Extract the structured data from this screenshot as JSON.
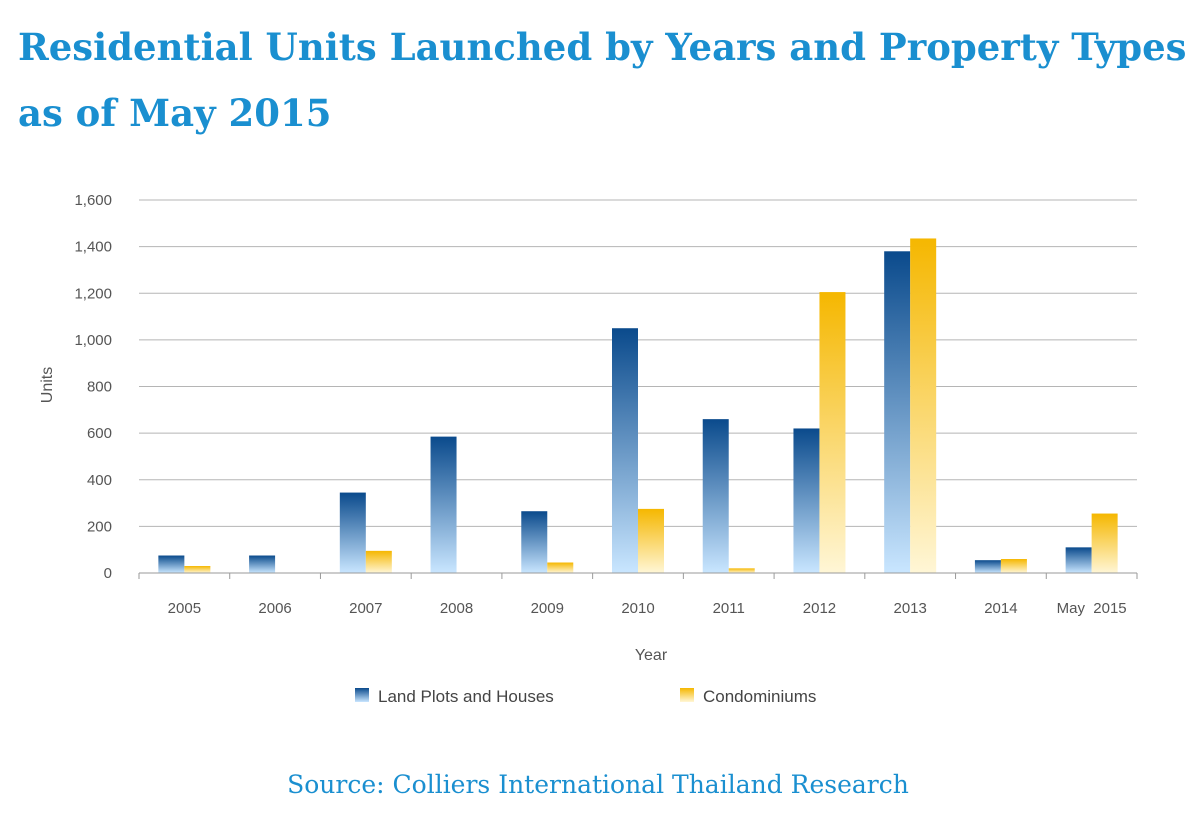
{
  "title": "Residential Units Launched by Years and Property Types as of May 2015",
  "source": "Source: Colliers International Thailand Research",
  "colors": {
    "land_top": "#0a4a8c",
    "land_bottom": "#c9e6ff",
    "condo_top": "#f5b700",
    "condo_bottom": "#fff6d6",
    "title": "#1a8fd0"
  },
  "chart_data": {
    "type": "bar",
    "xlabel": "Year",
    "ylabel": "Units",
    "ylim": [
      0,
      1600
    ],
    "yticks": [
      0,
      200,
      400,
      600,
      800,
      1000,
      1200,
      1400,
      1600
    ],
    "ytick_labels": [
      "0",
      "200",
      "400",
      "600",
      "800",
      "1,000",
      "1,200",
      "1,400",
      "1,600"
    ],
    "grid": true,
    "legend": "bottom",
    "categories": [
      "2005",
      "2006",
      "2007",
      "2008",
      "2009",
      "2010",
      "2011",
      "2012",
      "2013",
      "2014",
      "May  2015"
    ],
    "series": [
      {
        "name": "Land Plots and Houses",
        "values": [
          75,
          75,
          345,
          585,
          265,
          1050,
          660,
          620,
          1380,
          55,
          110
        ]
      },
      {
        "name": "Condominiums",
        "values": [
          30,
          0,
          95,
          0,
          45,
          275,
          20,
          1205,
          1435,
          60,
          255
        ]
      }
    ]
  }
}
